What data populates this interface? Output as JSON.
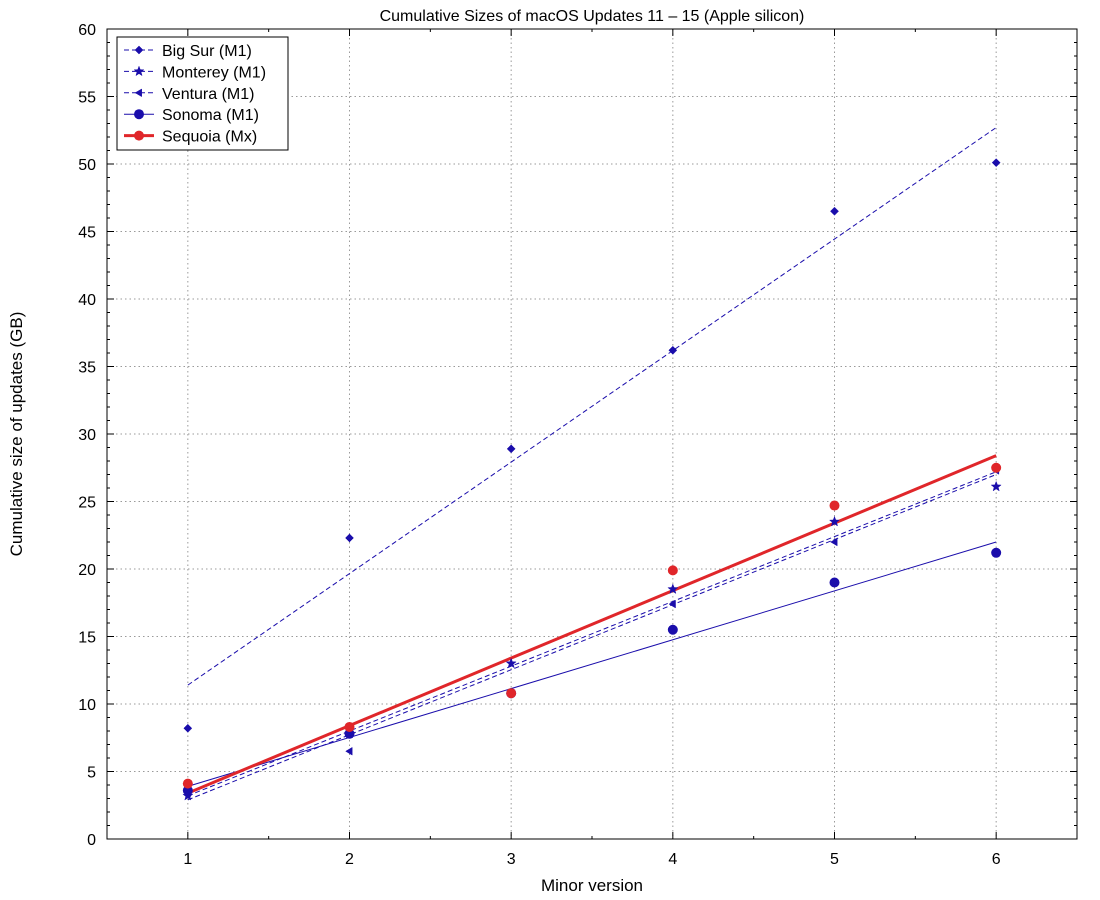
{
  "chart_data": {
    "type": "scatter",
    "title": "Cumulative Sizes of macOS Updates 11  – 15 (Apple silicon)",
    "xlabel": "Minor version",
    "ylabel": "Cumulative size of updates (GB)",
    "xlim": [
      0.5,
      6.5
    ],
    "ylim": [
      0,
      60
    ],
    "x_ticks": [
      "1",
      "2",
      "3",
      "4",
      "5",
      "6"
    ],
    "y_ticks": [
      "0",
      "5",
      "10",
      "15",
      "20",
      "25",
      "30",
      "35",
      "40",
      "45",
      "50",
      "55",
      "60"
    ],
    "grid": true,
    "legend_position": "top-left",
    "series": [
      {
        "name": "Big Sur (M1)",
        "marker": "diamond",
        "color": "#1a0dab",
        "line": "dashed",
        "x": [
          1,
          2,
          3,
          4,
          5,
          6
        ],
        "y": [
          8.2,
          22.3,
          28.9,
          36.2,
          46.5,
          50.1
        ],
        "fit": [
          [
            1,
            11.4
          ],
          [
            6,
            52.7
          ]
        ]
      },
      {
        "name": "Monterey (M1)",
        "marker": "star",
        "color": "#1a0dab",
        "line": "dashed",
        "x": [
          1,
          2,
          3,
          4,
          5,
          6
        ],
        "y": [
          3.2,
          7.8,
          13.0,
          18.5,
          23.5,
          26.1
        ],
        "fit": [
          [
            1,
            3.2
          ],
          [
            6,
            27.2
          ]
        ]
      },
      {
        "name": "Ventura (M1)",
        "marker": "triangle-left",
        "color": "#1a0dab",
        "line": "dashed",
        "x": [
          1,
          2,
          3,
          4,
          5,
          6
        ],
        "y": [
          3.4,
          6.5,
          10.8,
          17.4,
          22.0,
          27.3
        ],
        "fit": [
          [
            1,
            2.9
          ],
          [
            6,
            27.0
          ]
        ]
      },
      {
        "name": "Sonoma (M1)",
        "marker": "circle",
        "color": "#1a0dab",
        "line": "solid",
        "x": [
          1,
          2,
          3,
          4,
          5,
          6
        ],
        "y": [
          3.6,
          7.8,
          10.8,
          15.5,
          19.0,
          21.2
        ],
        "fit": [
          [
            1,
            3.9
          ],
          [
            6,
            22.0
          ]
        ]
      },
      {
        "name": "Sequoia (Mx)",
        "marker": "circle",
        "color": "#e0262a",
        "line": "solid-thick",
        "x": [
          1,
          2,
          3,
          4,
          5,
          6
        ],
        "y": [
          4.1,
          8.3,
          10.8,
          19.9,
          24.7,
          27.5
        ],
        "fit": [
          [
            1,
            3.4
          ],
          [
            6,
            28.4
          ]
        ]
      }
    ]
  }
}
